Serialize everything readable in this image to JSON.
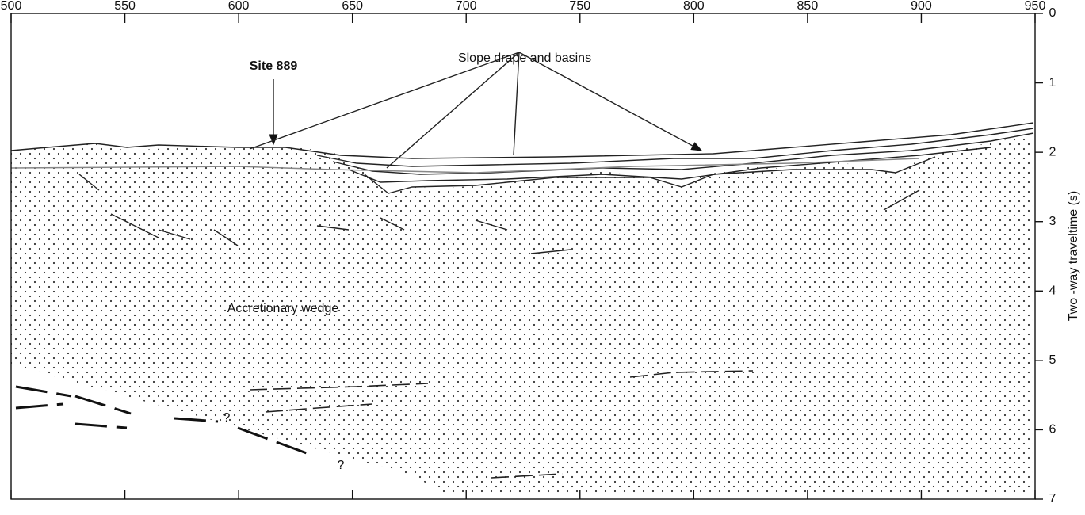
{
  "axes": {
    "xlim": [
      500,
      950
    ],
    "ylim": [
      0,
      7
    ],
    "x_ticks": [
      500,
      550,
      600,
      650,
      700,
      750,
      800,
      850,
      900,
      950
    ],
    "y_ticks": [
      0,
      1,
      2,
      3,
      4,
      5,
      6,
      7
    ],
    "y_label": "Two -way traveltime (s)"
  },
  "labels": {
    "site": "Site 889",
    "drape": "Slope drape and basins",
    "wedge": "Accretionary wedge",
    "question_1": "?",
    "question_2": "?"
  }
}
